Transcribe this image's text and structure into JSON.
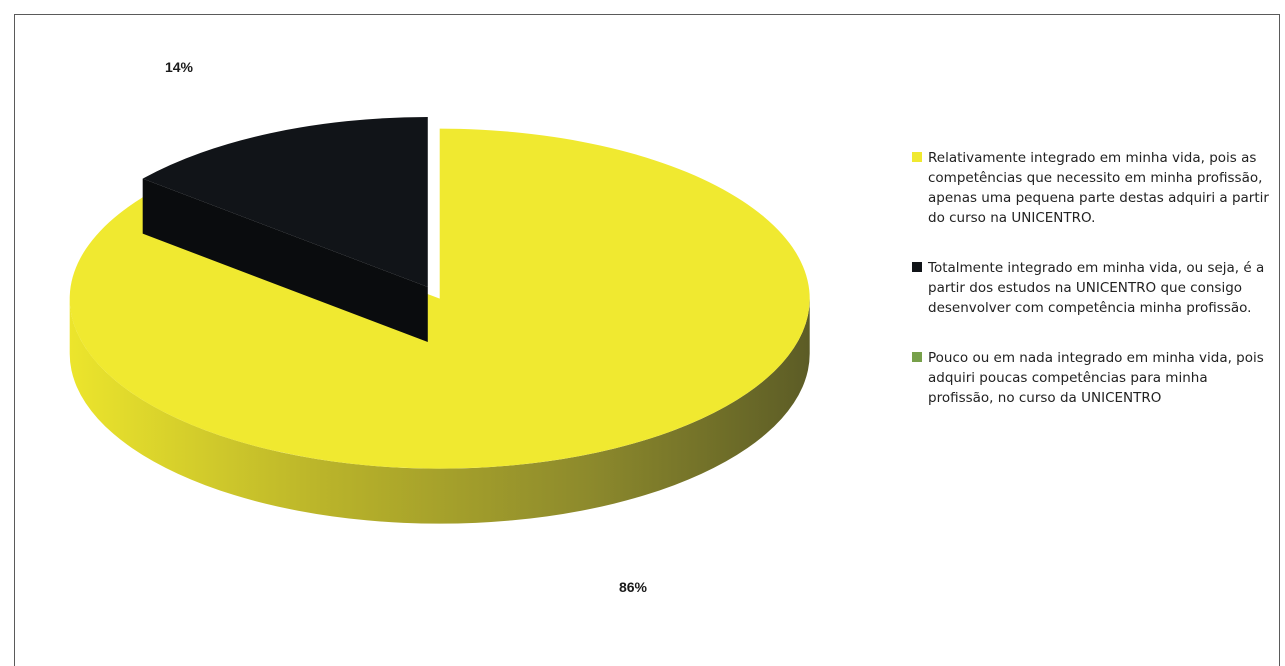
{
  "chart_data": {
    "type": "pie",
    "title": "",
    "labels": [
      "Relativamente integrado em minha vida, pois as competências que necessito em minha profissão, apenas uma pequena parte destas adquiri a partir do curso na UNICENTRO.",
      "Totalmente integrado em minha vida, ou seja, é a partir dos estudos na UNICENTRO que consigo desenvolver com competência minha profissão.",
      "Pouco ou em nada integrado em minha vida, pois adquiri poucas competências para minha profissão, no curso da UNICENTRO"
    ],
    "values": [
      86,
      14,
      0
    ],
    "data_labels": [
      "86%",
      "14%",
      ""
    ],
    "colors": [
      "#f0e930",
      "#111418",
      "#77a04a"
    ],
    "exploded": true,
    "three_d": true,
    "legend_position": "right"
  }
}
